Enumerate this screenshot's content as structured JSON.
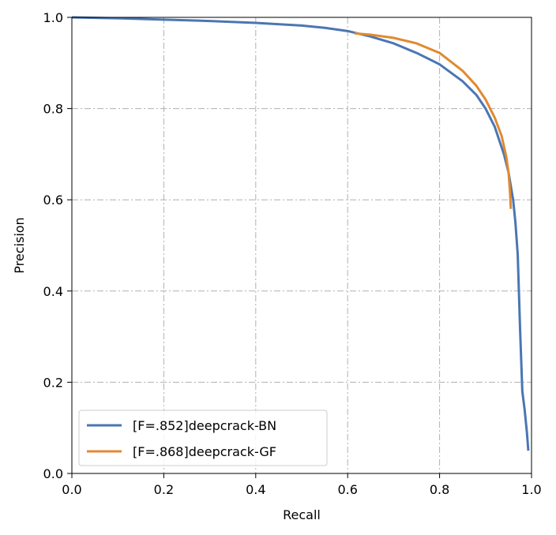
{
  "chart_data": {
    "type": "line",
    "title": "",
    "xlabel": "Recall",
    "ylabel": "Precision",
    "xlim": [
      0.0,
      1.0
    ],
    "ylim": [
      0.0,
      1.0
    ],
    "xticks": [
      "0.0",
      "0.2",
      "0.4",
      "0.6",
      "0.8",
      "1.0"
    ],
    "yticks": [
      "0.0",
      "0.2",
      "0.4",
      "0.6",
      "0.8",
      "1.0"
    ],
    "grid": true,
    "grid_style": "dash-dot",
    "legend_position": "lower-left",
    "series": [
      {
        "name": "[F=.852]deepcrack-BN",
        "color": "#4a76b3",
        "x": [
          0.0,
          0.1,
          0.2,
          0.3,
          0.4,
          0.5,
          0.55,
          0.6,
          0.65,
          0.7,
          0.75,
          0.8,
          0.85,
          0.88,
          0.9,
          0.92,
          0.94,
          0.95,
          0.96,
          0.965,
          0.97,
          0.975,
          0.98,
          0.985,
          0.99,
          0.993
        ],
        "y": [
          1.0,
          0.998,
          0.995,
          0.992,
          0.988,
          0.982,
          0.977,
          0.97,
          0.958,
          0.943,
          0.922,
          0.897,
          0.86,
          0.83,
          0.8,
          0.76,
          0.7,
          0.66,
          0.6,
          0.55,
          0.48,
          0.32,
          0.18,
          0.14,
          0.09,
          0.05
        ]
      },
      {
        "name": "[F=.868]deepcrack-GF",
        "color": "#e08a30",
        "x": [
          0.615,
          0.65,
          0.7,
          0.75,
          0.8,
          0.85,
          0.88,
          0.9,
          0.92,
          0.935,
          0.945,
          0.95,
          0.953,
          0.955
        ],
        "y": [
          0.965,
          0.962,
          0.955,
          0.943,
          0.922,
          0.883,
          0.85,
          0.82,
          0.78,
          0.74,
          0.695,
          0.66,
          0.62,
          0.58
        ]
      }
    ]
  }
}
